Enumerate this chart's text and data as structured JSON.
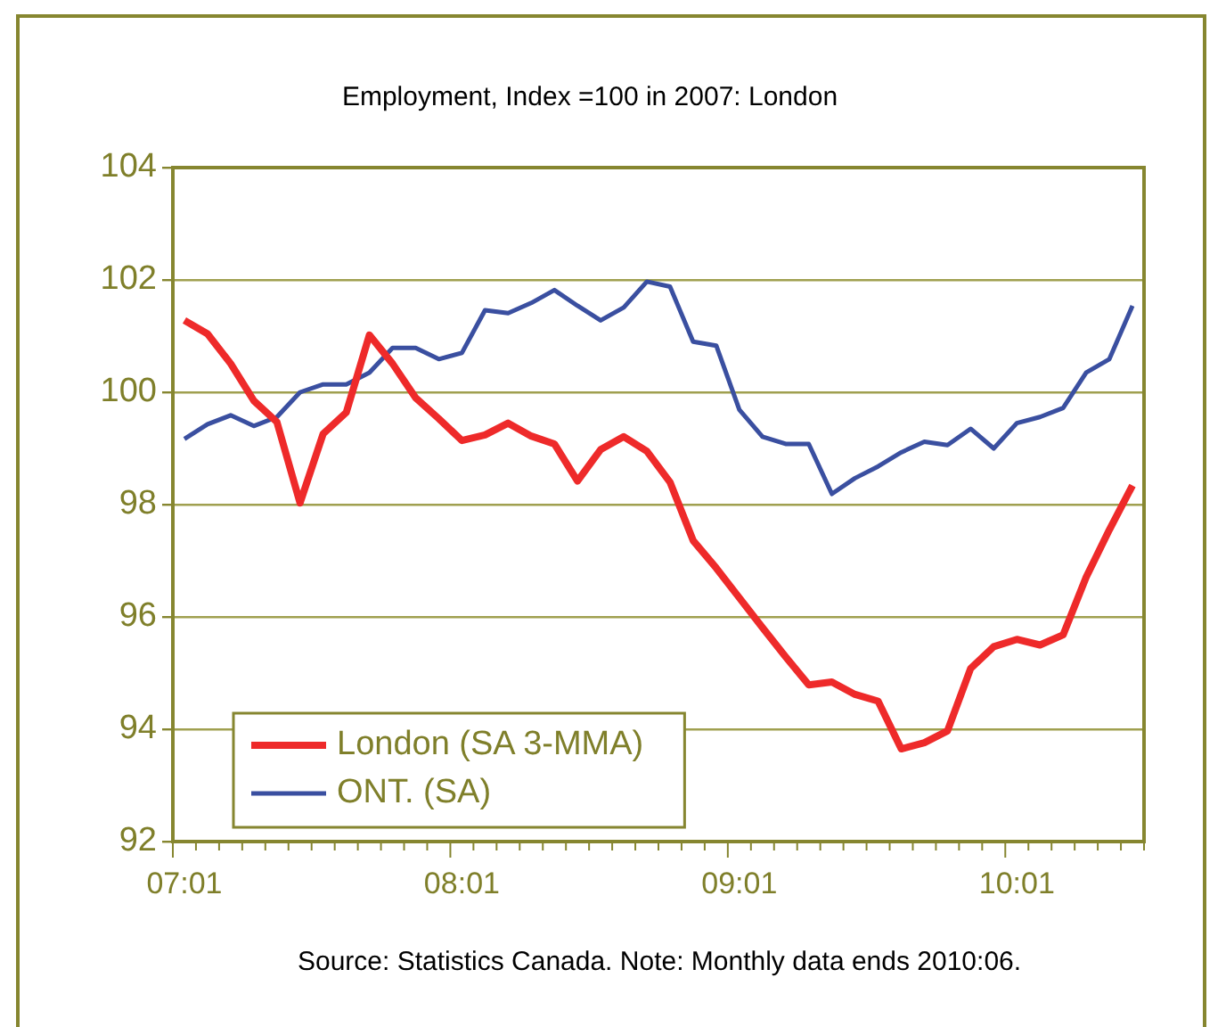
{
  "chart_data": {
    "type": "line",
    "title": "Employment, Index =100 in 2007: London",
    "categories": [
      "07:01",
      null,
      null,
      null,
      null,
      null,
      null,
      null,
      null,
      null,
      null,
      null,
      "08:01",
      null,
      null,
      null,
      null,
      null,
      null,
      null,
      null,
      null,
      null,
      null,
      "09:01",
      null,
      null,
      null,
      null,
      null,
      null,
      null,
      null,
      null,
      null,
      null,
      "10:01",
      null,
      null,
      null,
      null,
      null
    ],
    "series": [
      {
        "name": "London (SA 3-MMA)",
        "color": "#ee2a2a",
        "values": [
          101.28,
          101.04,
          100.51,
          99.85,
          99.47,
          98.03,
          99.26,
          99.64,
          101.02,
          100.51,
          99.9,
          99.53,
          99.14,
          99.24,
          99.45,
          99.22,
          99.08,
          98.42,
          98.98,
          99.21,
          98.95,
          98.4,
          97.36,
          96.87,
          96.34,
          95.81,
          95.29,
          94.79,
          94.84,
          94.62,
          94.5,
          93.65,
          93.76,
          93.97,
          95.08,
          95.47,
          95.6,
          95.5,
          95.68,
          96.71,
          97.55,
          98.34
        ]
      },
      {
        "name": "ONT. (SA)",
        "color": "#3a4fa0",
        "values": [
          99.17,
          99.43,
          99.59,
          99.4,
          99.56,
          100.0,
          100.14,
          100.14,
          100.35,
          100.79,
          100.79,
          100.59,
          100.7,
          101.46,
          101.41,
          101.59,
          101.82,
          101.54,
          101.28,
          101.51,
          101.97,
          101.88,
          100.9,
          100.83,
          99.69,
          99.21,
          99.08,
          99.08,
          98.19,
          98.47,
          98.68,
          98.93,
          99.12,
          99.06,
          99.35,
          99.0,
          99.45,
          99.56,
          99.72,
          100.35,
          100.59,
          101.54
        ]
      }
    ],
    "ylim": [
      92,
      104
    ],
    "yticks": [
      92,
      94,
      96,
      98,
      100,
      102,
      104
    ],
    "grid": "y",
    "legend": "bottom left",
    "marker": "none",
    "line_style": "solid",
    "annotations": [
      "Source: Statistics Canada. Note: Monthly data ends 2010:06."
    ]
  }
}
